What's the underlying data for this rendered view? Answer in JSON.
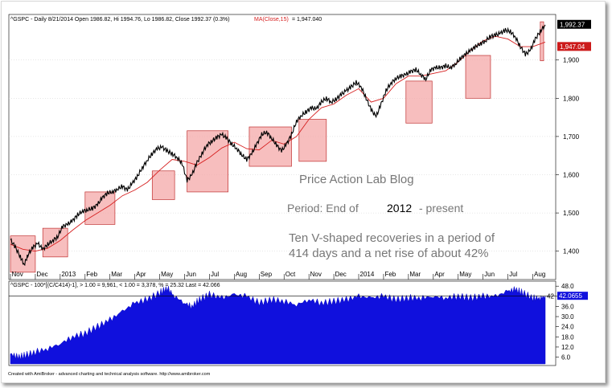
{
  "header": {
    "main_ticker": "^GSPC - Daily 8/21/2014 Open 1986.82, Hi 1994.76, Lo 1986.82, Close 1992.37 (0.3%)",
    "ma_label": "MA(Close,15)",
    "ma_value": "= 1,947.040",
    "lower": "^GSPC - 100*[(C/C414)-1], > 1.00 = 9,961, < 1.00 = 3,378, % = 25.32 Last = 42.066"
  },
  "annotation": {
    "line1": "Price Action Lab Blog",
    "line2a": "Period: End of",
    "line2b": "2012",
    "line2c": "- present",
    "line3": "Ten V-shaped recoveries in a period of",
    "line4": "414 days and a net rise of about 42%"
  },
  "footer": "Created with AmiBroker - advanced charting and technical analysis software. http://www.amibroker.com",
  "colors": {
    "price": "#000000",
    "ma": "#d62020",
    "box_fill": "#f4a8a8",
    "box_stroke": "#c03030",
    "area": "#1010dd",
    "label_black": "#000000",
    "label_red": "#cc1a1a"
  },
  "chart_data": [
    {
      "type": "line",
      "x_ticks": [
        "Nov",
        "Dec",
        "2013",
        "Feb",
        "Mar",
        "Apr",
        "May",
        "Jun",
        "Jul",
        "Aug",
        "Sep",
        "Oct",
        "Nov",
        "Dec",
        "2014",
        "Feb",
        "Mar",
        "Apr",
        "May",
        "Jun",
        "Jul",
        "Aug"
      ],
      "x_tick_months": [
        0,
        1,
        2,
        3,
        4,
        5,
        6,
        7,
        8,
        9,
        10,
        11,
        12,
        13,
        14,
        15,
        16,
        17,
        18,
        19,
        20,
        21
      ],
      "y_ticks": [
        "1,400",
        "1,500",
        "1,600",
        "1,700",
        "1,800",
        "1,900"
      ],
      "y_tick_values": [
        1400,
        1500,
        1600,
        1700,
        1800,
        1900
      ],
      "ylim": [
        1330,
        2015
      ],
      "last_close_label": "1,992.37",
      "last_close": 1992.37,
      "ma_label_value": "1,947.04",
      "ma_value": 1947.04,
      "series": [
        {
          "x": [
            0.0,
            0.2,
            0.4,
            0.55,
            0.7,
            0.9,
            1.1,
            1.3,
            1.5,
            1.7,
            1.9,
            2.1,
            2.3,
            2.5,
            2.7,
            2.9,
            3.1,
            3.3,
            3.5,
            3.7,
            3.9,
            4.1,
            4.3,
            4.5,
            4.7,
            4.9,
            5.1,
            5.3,
            5.5,
            5.7,
            5.9,
            6.1,
            6.3,
            6.5,
            6.7,
            6.9,
            7.1,
            7.3,
            7.5,
            7.7,
            7.9,
            8.1,
            8.3,
            8.5,
            8.7,
            8.9,
            9.1,
            9.3,
            9.5,
            9.7,
            9.9,
            10.1,
            10.3,
            10.5,
            10.7,
            10.9,
            11.1,
            11.3,
            11.5,
            11.7,
            11.9,
            12.1,
            12.3,
            12.5,
            12.7,
            12.9,
            13.1,
            13.3,
            13.5,
            13.7,
            13.9,
            14.1,
            14.3,
            14.5,
            14.7,
            14.9,
            15.1,
            15.3,
            15.5,
            15.7,
            15.9,
            16.1,
            16.3,
            16.5,
            16.7,
            16.9,
            17.1,
            17.3,
            17.5,
            17.7,
            17.9,
            18.1,
            18.3,
            18.5,
            18.7,
            18.9,
            19.1,
            19.3,
            19.5,
            19.7,
            19.9,
            20.1,
            20.3,
            20.5,
            20.7,
            20.9,
            21.1,
            21.3,
            21.5
          ],
          "values": [
            1430,
            1410,
            1385,
            1365,
            1390,
            1410,
            1420,
            1405,
            1418,
            1428,
            1438,
            1465,
            1470,
            1480,
            1495,
            1505,
            1508,
            1512,
            1522,
            1540,
            1552,
            1555,
            1562,
            1570,
            1560,
            1578,
            1595,
            1618,
            1638,
            1655,
            1668,
            1672,
            1662,
            1655,
            1645,
            1630,
            1585,
            1600,
            1632,
            1655,
            1678,
            1688,
            1698,
            1705,
            1695,
            1680,
            1668,
            1652,
            1640,
            1655,
            1680,
            1705,
            1712,
            1695,
            1678,
            1662,
            1680,
            1705,
            1740,
            1755,
            1765,
            1775,
            1772,
            1790,
            1800,
            1790,
            1798,
            1810,
            1820,
            1830,
            1842,
            1830,
            1800,
            1770,
            1752,
            1785,
            1820,
            1840,
            1852,
            1858,
            1862,
            1870,
            1875,
            1862,
            1850,
            1875,
            1880,
            1880,
            1885,
            1880,
            1890,
            1905,
            1915,
            1925,
            1935,
            1943,
            1950,
            1962,
            1965,
            1970,
            1978,
            1975,
            1960,
            1935,
            1915,
            1925,
            1955,
            1975,
            1992
          ]
        },
        {
          "x": [
            0.0,
            0.5,
            1.0,
            1.5,
            2.0,
            2.5,
            3.0,
            3.5,
            4.0,
            4.5,
            5.0,
            5.5,
            6.0,
            6.5,
            7.0,
            7.5,
            8.0,
            8.5,
            9.0,
            9.5,
            10.0,
            10.5,
            11.0,
            11.5,
            12.0,
            12.5,
            13.0,
            13.5,
            14.0,
            14.5,
            15.0,
            15.5,
            16.0,
            16.5,
            17.0,
            17.5,
            18.0,
            18.5,
            19.0,
            19.5,
            20.0,
            20.5,
            21.0,
            21.5
          ],
          "values": [
            1418,
            1405,
            1400,
            1408,
            1428,
            1455,
            1480,
            1500,
            1520,
            1545,
            1560,
            1580,
            1612,
            1640,
            1635,
            1625,
            1645,
            1670,
            1685,
            1668,
            1665,
            1690,
            1680,
            1700,
            1745,
            1775,
            1785,
            1808,
            1825,
            1790,
            1800,
            1838,
            1858,
            1858,
            1865,
            1872,
            1895,
            1925,
            1950,
            1962,
            1955,
            1935,
            1935,
            1947
          ]
        }
      ]
    },
    {
      "type": "area",
      "x_tick_months": [
        0,
        1,
        2,
        3,
        4,
        5,
        6,
        7,
        8,
        9,
        10,
        11,
        12,
        13,
        14,
        15,
        16,
        17,
        18,
        19,
        20,
        21
      ],
      "y_ticks": [
        "6.0",
        "12.0",
        "18.0",
        "24.0",
        "30.0",
        "36.0",
        "42.0",
        "48.0"
      ],
      "y_tick_values": [
        6,
        12,
        18,
        24,
        30,
        36,
        42,
        48
      ],
      "ylim": [
        2,
        50
      ],
      "last_value_label": "42.0655",
      "last_value_label_short": "42",
      "last_value": 42.0655,
      "series": [
        {
          "x": [
            0.0,
            0.3,
            0.6,
            1.0,
            1.5,
            2.0,
            2.5,
            3.0,
            3.5,
            4.0,
            4.5,
            5.0,
            5.5,
            6.0,
            6.3,
            6.6,
            7.0,
            7.3,
            7.6,
            8.0,
            8.5,
            9.0,
            9.5,
            10.0,
            10.5,
            11.0,
            11.5,
            12.0,
            12.5,
            13.0,
            13.5,
            14.0,
            14.5,
            15.0,
            15.5,
            16.0,
            16.5,
            17.0,
            17.5,
            18.0,
            18.5,
            19.0,
            19.5,
            20.0,
            20.3,
            20.6,
            21.0,
            21.3,
            21.5
          ],
          "values": [
            8,
            6,
            7,
            9,
            11,
            14,
            18,
            20,
            24,
            28,
            33,
            38,
            40,
            44,
            47,
            42,
            38,
            36,
            40,
            43,
            41,
            43,
            42,
            38,
            40,
            39,
            37,
            40,
            38,
            39,
            40,
            42,
            41,
            42,
            40,
            41,
            41,
            42,
            41,
            42,
            41,
            42,
            42,
            45,
            46,
            44,
            41,
            41,
            42
          ]
        }
      ]
    }
  ]
}
